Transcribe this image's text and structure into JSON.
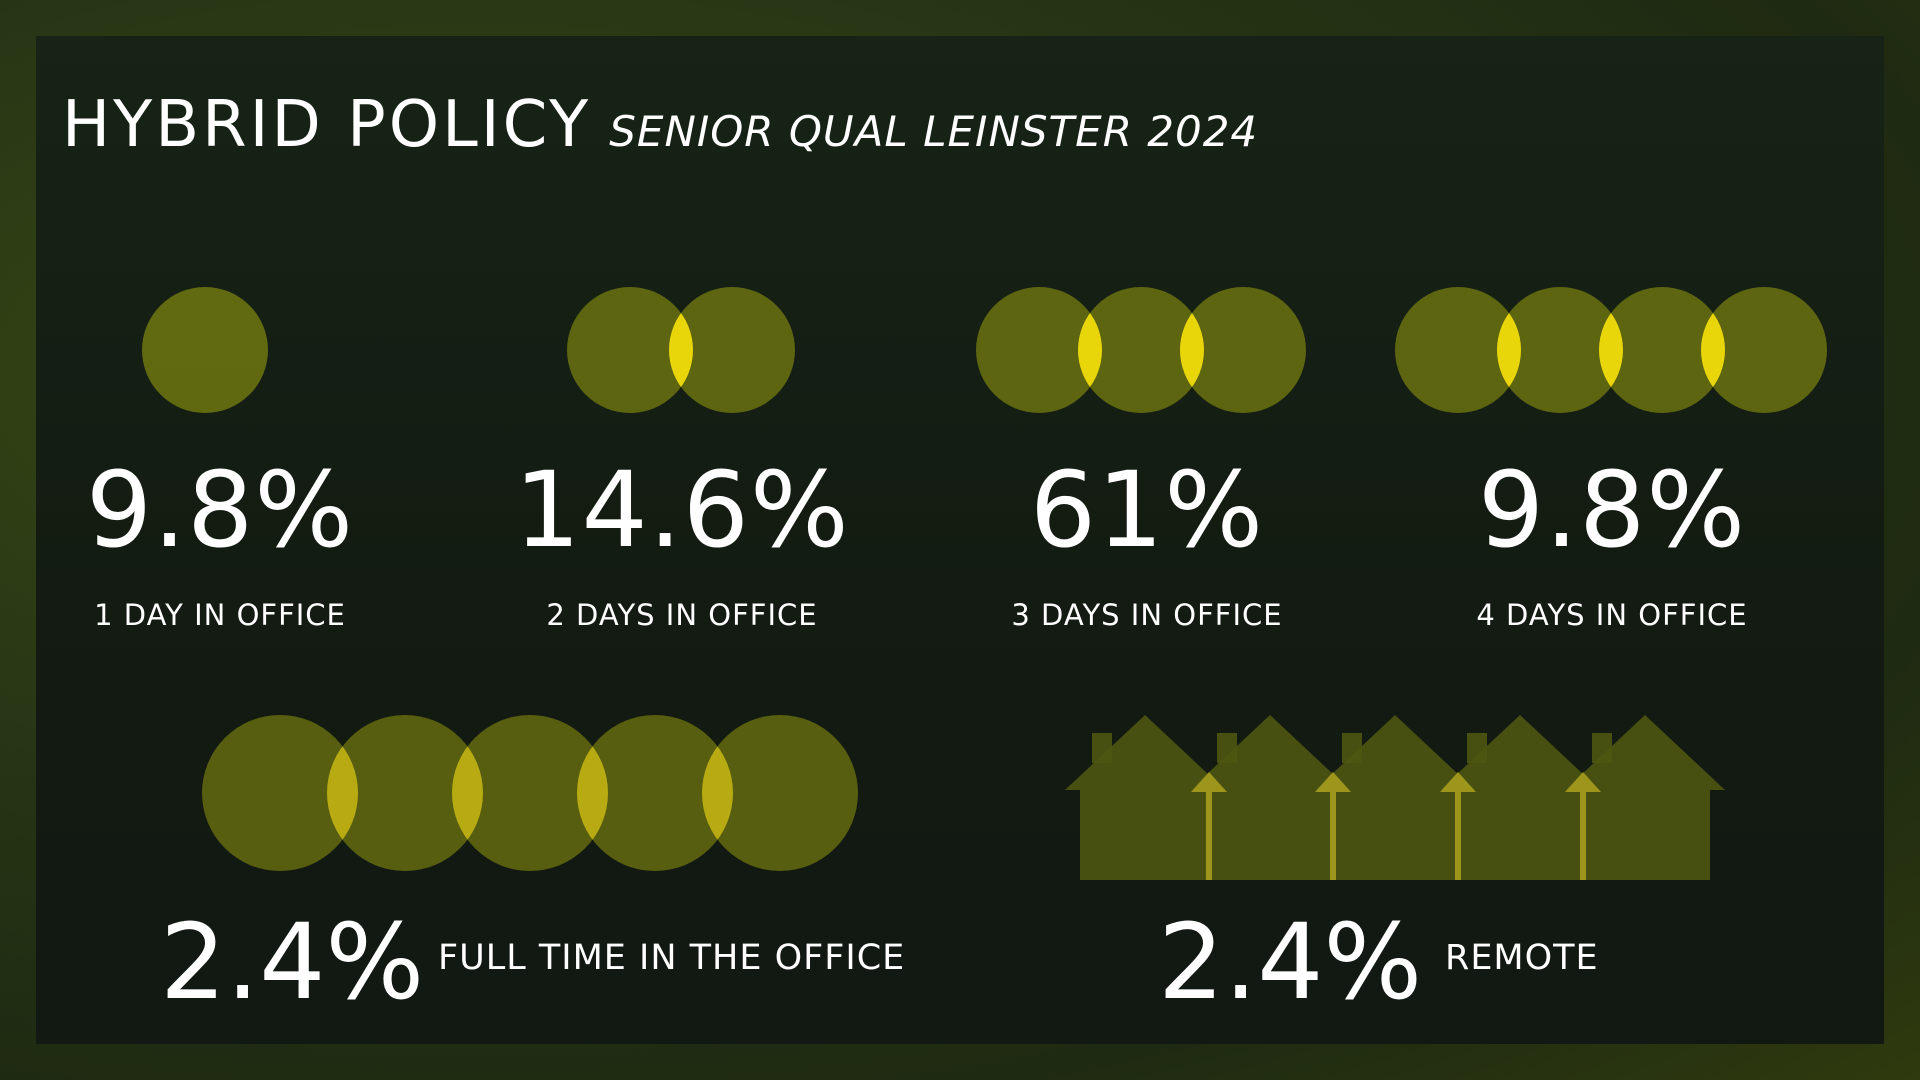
{
  "header": {
    "title": "HYBRID POLICY",
    "subtitle": "SENIOR QUAL LEINSTER 2024"
  },
  "stats": [
    {
      "value": "9.8%",
      "label": "1 DAY IN OFFICE",
      "days": 1
    },
    {
      "value": "14.6%",
      "label": "2 DAYS IN OFFICE",
      "days": 2
    },
    {
      "value": "61%",
      "label": "3 DAYS IN OFFICE",
      "days": 3
    },
    {
      "value": "9.8%",
      "label": "4 DAYS IN OFFICE",
      "days": 4
    }
  ],
  "full_time": {
    "value": "2.4%",
    "label": "FULL TIME IN THE OFFICE",
    "days": 5
  },
  "remote": {
    "value": "2.4%",
    "label": "REMOTE",
    "houses": 5
  },
  "colors": {
    "circle": "#6f7710",
    "overlap": "#e9d60a",
    "text": "#ffffff",
    "house": "#4e5612",
    "arrow": "#9e951d"
  }
}
